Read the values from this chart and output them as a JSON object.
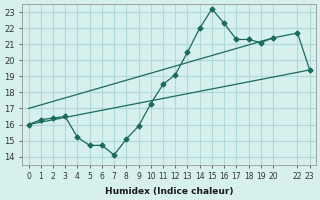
{
  "xlabel": "Humidex (Indice chaleur)",
  "ylabel": "",
  "bg_color": "#d6f0ee",
  "grid_color": "#b0d8d4",
  "line_color": "#1a6b5a",
  "line_color2": "#1a6b5a",
  "xlim": [
    -0.5,
    23.5
  ],
  "ylim": [
    13.5,
    23.5
  ],
  "xticks": [
    0,
    1,
    2,
    3,
    4,
    5,
    6,
    7,
    8,
    9,
    10,
    11,
    12,
    13,
    14,
    15,
    16,
    17,
    18,
    19,
    20,
    22,
    23
  ],
  "yticks": [
    14,
    15,
    16,
    17,
    18,
    19,
    20,
    21,
    22,
    23
  ],
  "main_x": [
    0,
    1,
    2,
    3,
    4,
    5,
    6,
    7,
    8,
    9,
    10,
    11,
    12,
    13,
    14,
    15,
    16,
    17,
    18,
    19,
    20,
    22,
    23
  ],
  "main_y": [
    16,
    16.3,
    16.4,
    16.5,
    15.2,
    14.7,
    14.7,
    14.1,
    15.1,
    15.9,
    17.3,
    18.5,
    19.1,
    20.5,
    22.0,
    23.2,
    22.3,
    21.3,
    21.3,
    21.1,
    21.4,
    21.7,
    19.4
  ],
  "trend1_x": [
    0,
    23
  ],
  "trend1_y": [
    16.0,
    19.4
  ],
  "trend2_x": [
    0,
    20
  ],
  "trend2_y": [
    17.0,
    21.4
  ]
}
